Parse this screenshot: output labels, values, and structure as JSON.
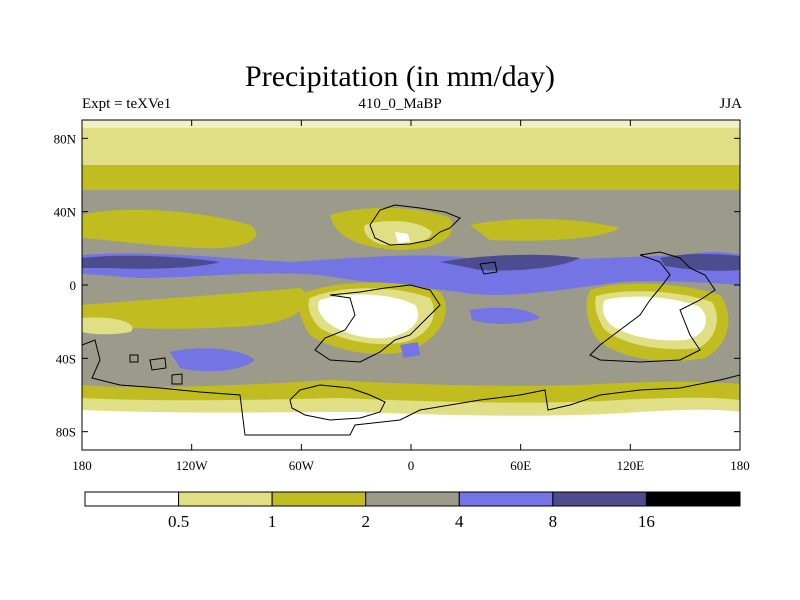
{
  "chart_data": {
    "type": "heatmap",
    "title": "Precipitation (in mm/day)",
    "left_label": "Expt = teXVe1",
    "center_label": "410_0_MaBP",
    "right_label": "JJA",
    "x_ticks": [
      "180",
      "120W",
      "60W",
      "0",
      "60E",
      "120E",
      "180"
    ],
    "x_values": [
      -180,
      -120,
      -60,
      0,
      60,
      120,
      180
    ],
    "y_ticks": [
      "80N",
      "40N",
      "0",
      "40S",
      "80S"
    ],
    "y_values": [
      80,
      40,
      0,
      -40,
      -80
    ],
    "xlim": [
      -180,
      180
    ],
    "ylim": [
      -90,
      90
    ],
    "colorbar": {
      "bins": [
        {
          "range": "<0.5",
          "color": "#ffffff"
        },
        {
          "range": "0.5-1",
          "color": "#e1df86"
        },
        {
          "range": "1-2",
          "color": "#c1bd20"
        },
        {
          "range": "2-4",
          "color": "#9c9a8b"
        },
        {
          "range": "4-8",
          "color": "#7474e4"
        },
        {
          "range": "8-16",
          "color": "#4c4c8f"
        },
        {
          "range": ">16",
          "color": "#000000"
        }
      ],
      "labels": [
        "0.5",
        "1",
        "2",
        "4",
        "8",
        "16"
      ]
    }
  }
}
